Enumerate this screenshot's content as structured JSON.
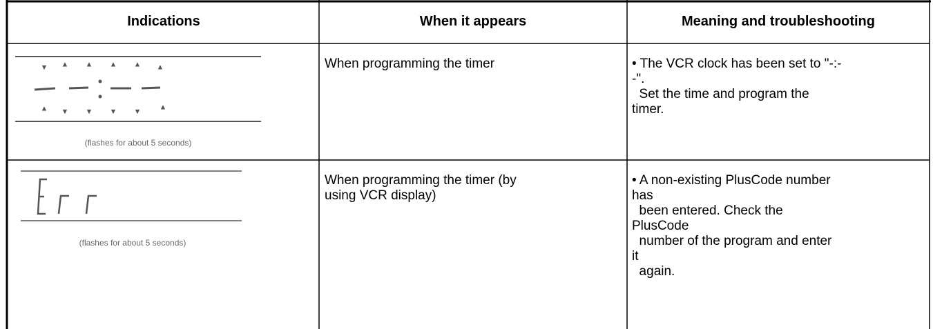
{
  "table": {
    "headers": [
      "Indications",
      "When it appears",
      "Meaning and troubleshooting"
    ],
    "rows": [
      {
        "caption": "(flashes for about 5 seconds)",
        "when": [
          "When programming the timer"
        ],
        "meaning": [
          "• The VCR clock has been set to \"-:-",
          "-\".",
          "  Set the time and program the",
          "timer."
        ]
      },
      {
        "caption": "(flashes for about 5 seconds)",
        "when": [
          "When programming the timer (by",
          "using VCR display)"
        ],
        "meaning": [
          "• A non-existing PlusCode number",
          "has",
          "  been entered. Check the",
          "PlusCode",
          "  number of the program and enter",
          "it",
          "  again."
        ]
      }
    ]
  }
}
